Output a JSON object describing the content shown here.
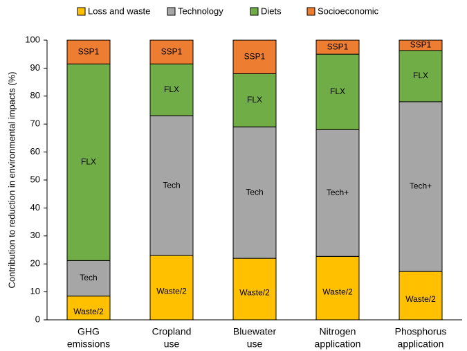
{
  "chart_data": {
    "type": "stacked_bar",
    "ylabel": "Contribution to reduction in environmental impacts (%)",
    "categories": [
      [
        "GHG",
        "emissions"
      ],
      [
        "Cropland",
        "use"
      ],
      [
        "Bluewater",
        "use"
      ],
      [
        "Nitrogen",
        "application"
      ],
      [
        "Phosphorus",
        "application"
      ]
    ],
    "series": [
      {
        "name": "Loss and waste",
        "color": "#ffc000",
        "values": [
          8.5,
          23,
          22,
          22.7,
          17.3
        ],
        "labels": [
          "Waste/2",
          "Waste/2",
          "Waste/2",
          "Waste/2",
          "Waste/2"
        ]
      },
      {
        "name": "Technology",
        "color": "#a6a6a6",
        "values": [
          12.7,
          50,
          47,
          45.3,
          60.7
        ],
        "labels": [
          "Tech",
          "Tech",
          "Tech",
          "Tech+",
          "Tech+"
        ]
      },
      {
        "name": "Diets",
        "color": "#70ad47",
        "values": [
          70.3,
          18.5,
          19,
          27,
          18.3
        ],
        "labels": [
          "FLX",
          "FLX",
          "FLX",
          "FLX",
          "FLX"
        ]
      },
      {
        "name": "Socioeconomic",
        "color": "#ed7d31",
        "values": [
          8.5,
          8.5,
          12,
          5,
          3.7
        ],
        "labels": [
          "SSP1",
          "SSP1",
          "SSP1",
          "SSP1",
          "SSP1"
        ]
      }
    ],
    "ylim": [
      0,
      100
    ],
    "yticks": [
      0,
      10,
      20,
      30,
      40,
      50,
      60,
      70,
      80,
      90,
      100
    ],
    "legend": "top"
  }
}
